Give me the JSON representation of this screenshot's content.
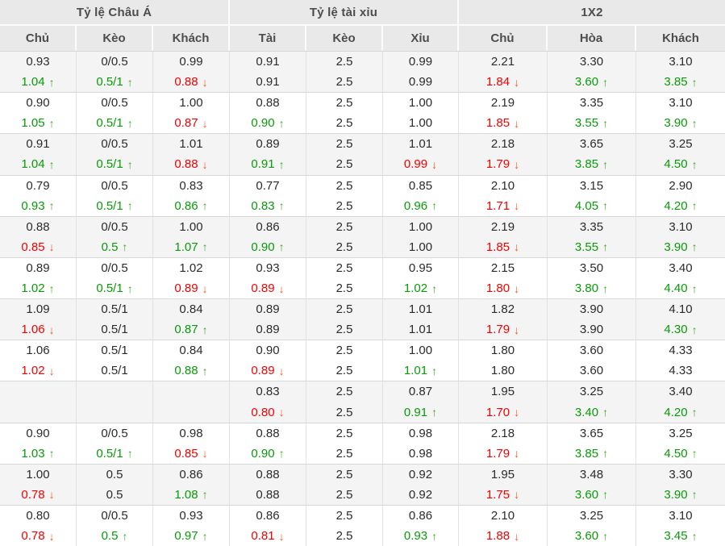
{
  "table": {
    "title": "odds-comparison",
    "colors": {
      "header_bg": "#e9e9e9",
      "header_text": "#4d4d4d",
      "row_alt_bg": "#f4f4f4",
      "value_text": "#2b2b2b",
      "up_green": "#089b08",
      "down_red": "#f40000",
      "arrow_up": "#4aa52c",
      "arrow_down": "#f4581c"
    },
    "groups": [
      {
        "label": "Tỷ lệ Châu Á",
        "columns": [
          "Chủ",
          "Kèo",
          "Khách"
        ]
      },
      {
        "label": "Tỷ lệ tài xỉu",
        "columns": [
          "Tài",
          "Kèo",
          "Xỉu"
        ]
      },
      {
        "label": "1X2",
        "columns": [
          "Chủ",
          "Hòa",
          "Khách"
        ]
      }
    ],
    "rows": [
      {
        "cells": [
          {
            "top": "0.93",
            "bottom": "1.04",
            "dir": "up"
          },
          {
            "top": "0/0.5",
            "bottom": "0.5/1",
            "dir": "up"
          },
          {
            "top": "0.99",
            "bottom": "0.88",
            "dir": "down"
          },
          {
            "top": "0.91",
            "bottom": "0.91",
            "dir": "none"
          },
          {
            "top": "2.5",
            "bottom": "2.5",
            "dir": "none"
          },
          {
            "top": "0.99",
            "bottom": "0.99",
            "dir": "none"
          },
          {
            "top": "2.21",
            "bottom": "1.84",
            "dir": "down"
          },
          {
            "top": "3.30",
            "bottom": "3.60",
            "dir": "up"
          },
          {
            "top": "3.10",
            "bottom": "3.85",
            "dir": "up"
          }
        ]
      },
      {
        "cells": [
          {
            "top": "0.90",
            "bottom": "1.05",
            "dir": "up"
          },
          {
            "top": "0/0.5",
            "bottom": "0.5/1",
            "dir": "up"
          },
          {
            "top": "1.00",
            "bottom": "0.87",
            "dir": "down"
          },
          {
            "top": "0.88",
            "bottom": "0.90",
            "dir": "up"
          },
          {
            "top": "2.5",
            "bottom": "2.5",
            "dir": "none"
          },
          {
            "top": "1.00",
            "bottom": "1.00",
            "dir": "none"
          },
          {
            "top": "2.19",
            "bottom": "1.85",
            "dir": "down"
          },
          {
            "top": "3.35",
            "bottom": "3.55",
            "dir": "up"
          },
          {
            "top": "3.10",
            "bottom": "3.90",
            "dir": "up"
          }
        ]
      },
      {
        "cells": [
          {
            "top": "0.91",
            "bottom": "1.04",
            "dir": "up"
          },
          {
            "top": "0/0.5",
            "bottom": "0.5/1",
            "dir": "up"
          },
          {
            "top": "1.01",
            "bottom": "0.88",
            "dir": "down"
          },
          {
            "top": "0.89",
            "bottom": "0.91",
            "dir": "up"
          },
          {
            "top": "2.5",
            "bottom": "2.5",
            "dir": "none"
          },
          {
            "top": "1.01",
            "bottom": "0.99",
            "dir": "down"
          },
          {
            "top": "2.18",
            "bottom": "1.79",
            "dir": "down"
          },
          {
            "top": "3.65",
            "bottom": "3.85",
            "dir": "up"
          },
          {
            "top": "3.25",
            "bottom": "4.50",
            "dir": "up"
          }
        ]
      },
      {
        "cells": [
          {
            "top": "0.79",
            "bottom": "0.93",
            "dir": "up"
          },
          {
            "top": "0/0.5",
            "bottom": "0.5/1",
            "dir": "up"
          },
          {
            "top": "0.83",
            "bottom": "0.86",
            "dir": "up"
          },
          {
            "top": "0.77",
            "bottom": "0.83",
            "dir": "up"
          },
          {
            "top": "2.5",
            "bottom": "2.5",
            "dir": "none"
          },
          {
            "top": "0.85",
            "bottom": "0.96",
            "dir": "up"
          },
          {
            "top": "2.10",
            "bottom": "1.71",
            "dir": "down"
          },
          {
            "top": "3.15",
            "bottom": "4.05",
            "dir": "up"
          },
          {
            "top": "2.90",
            "bottom": "4.20",
            "dir": "up"
          }
        ]
      },
      {
        "cells": [
          {
            "top": "0.88",
            "bottom": "0.85",
            "dir": "down"
          },
          {
            "top": "0/0.5",
            "bottom": "0.5",
            "dir": "up"
          },
          {
            "top": "1.00",
            "bottom": "1.07",
            "dir": "up"
          },
          {
            "top": "0.86",
            "bottom": "0.90",
            "dir": "up"
          },
          {
            "top": "2.5",
            "bottom": "2.5",
            "dir": "none"
          },
          {
            "top": "1.00",
            "bottom": "1.00",
            "dir": "none"
          },
          {
            "top": "2.19",
            "bottom": "1.85",
            "dir": "down"
          },
          {
            "top": "3.35",
            "bottom": "3.55",
            "dir": "up"
          },
          {
            "top": "3.10",
            "bottom": "3.90",
            "dir": "up"
          }
        ]
      },
      {
        "cells": [
          {
            "top": "0.89",
            "bottom": "1.02",
            "dir": "up"
          },
          {
            "top": "0/0.5",
            "bottom": "0.5/1",
            "dir": "up"
          },
          {
            "top": "1.02",
            "bottom": "0.89",
            "dir": "down"
          },
          {
            "top": "0.93",
            "bottom": "0.89",
            "dir": "down"
          },
          {
            "top": "2.5",
            "bottom": "2.5",
            "dir": "none"
          },
          {
            "top": "0.95",
            "bottom": "1.02",
            "dir": "up"
          },
          {
            "top": "2.15",
            "bottom": "1.80",
            "dir": "down"
          },
          {
            "top": "3.50",
            "bottom": "3.80",
            "dir": "up"
          },
          {
            "top": "3.40",
            "bottom": "4.40",
            "dir": "up"
          }
        ]
      },
      {
        "cells": [
          {
            "top": "1.09",
            "bottom": "1.06",
            "dir": "down"
          },
          {
            "top": "0.5/1",
            "bottom": "0.5/1",
            "dir": "none"
          },
          {
            "top": "0.84",
            "bottom": "0.87",
            "dir": "up"
          },
          {
            "top": "0.89",
            "bottom": "0.89",
            "dir": "none"
          },
          {
            "top": "2.5",
            "bottom": "2.5",
            "dir": "none"
          },
          {
            "top": "1.01",
            "bottom": "1.01",
            "dir": "none"
          },
          {
            "top": "1.82",
            "bottom": "1.79",
            "dir": "down"
          },
          {
            "top": "3.90",
            "bottom": "3.90",
            "dir": "none"
          },
          {
            "top": "4.10",
            "bottom": "4.30",
            "dir": "up"
          }
        ]
      },
      {
        "cells": [
          {
            "top": "1.06",
            "bottom": "1.02",
            "dir": "down"
          },
          {
            "top": "0.5/1",
            "bottom": "0.5/1",
            "dir": "none"
          },
          {
            "top": "0.84",
            "bottom": "0.88",
            "dir": "up"
          },
          {
            "top": "0.90",
            "bottom": "0.89",
            "dir": "down"
          },
          {
            "top": "2.5",
            "bottom": "2.5",
            "dir": "none"
          },
          {
            "top": "1.00",
            "bottom": "1.01",
            "dir": "up"
          },
          {
            "top": "1.80",
            "bottom": "1.80",
            "dir": "none"
          },
          {
            "top": "3.60",
            "bottom": "3.60",
            "dir": "none"
          },
          {
            "top": "4.33",
            "bottom": "4.33",
            "dir": "none"
          }
        ]
      },
      {
        "cells": [
          {
            "top": "",
            "bottom": "",
            "dir": "none"
          },
          {
            "top": "",
            "bottom": "",
            "dir": "none"
          },
          {
            "top": "",
            "bottom": "",
            "dir": "none"
          },
          {
            "top": "0.83",
            "bottom": "0.80",
            "dir": "down"
          },
          {
            "top": "2.5",
            "bottom": "2.5",
            "dir": "none"
          },
          {
            "top": "0.87",
            "bottom": "0.91",
            "dir": "up"
          },
          {
            "top": "1.95",
            "bottom": "1.70",
            "dir": "down"
          },
          {
            "top": "3.25",
            "bottom": "3.40",
            "dir": "up"
          },
          {
            "top": "3.40",
            "bottom": "4.20",
            "dir": "up"
          }
        ]
      },
      {
        "cells": [
          {
            "top": "0.90",
            "bottom": "1.03",
            "dir": "up"
          },
          {
            "top": "0/0.5",
            "bottom": "0.5/1",
            "dir": "up"
          },
          {
            "top": "0.98",
            "bottom": "0.85",
            "dir": "down"
          },
          {
            "top": "0.88",
            "bottom": "0.90",
            "dir": "up"
          },
          {
            "top": "2.5",
            "bottom": "2.5",
            "dir": "none"
          },
          {
            "top": "0.98",
            "bottom": "0.98",
            "dir": "none"
          },
          {
            "top": "2.18",
            "bottom": "1.79",
            "dir": "down"
          },
          {
            "top": "3.65",
            "bottom": "3.85",
            "dir": "up"
          },
          {
            "top": "3.25",
            "bottom": "4.50",
            "dir": "up"
          }
        ]
      },
      {
        "cells": [
          {
            "top": "1.00",
            "bottom": "0.78",
            "dir": "down"
          },
          {
            "top": "0.5",
            "bottom": "0.5",
            "dir": "none"
          },
          {
            "top": "0.86",
            "bottom": "1.08",
            "dir": "up"
          },
          {
            "top": "0.88",
            "bottom": "0.88",
            "dir": "none"
          },
          {
            "top": "2.5",
            "bottom": "2.5",
            "dir": "none"
          },
          {
            "top": "0.92",
            "bottom": "0.92",
            "dir": "none"
          },
          {
            "top": "1.95",
            "bottom": "1.75",
            "dir": "down"
          },
          {
            "top": "3.48",
            "bottom": "3.60",
            "dir": "up"
          },
          {
            "top": "3.30",
            "bottom": "3.90",
            "dir": "up"
          }
        ]
      },
      {
        "cells": [
          {
            "top": "0.80",
            "bottom": "0.78",
            "dir": "down"
          },
          {
            "top": "0/0.5",
            "bottom": "0.5",
            "dir": "up"
          },
          {
            "top": "0.93",
            "bottom": "0.97",
            "dir": "up"
          },
          {
            "top": "0.86",
            "bottom": "0.81",
            "dir": "down"
          },
          {
            "top": "2.5",
            "bottom": "2.5",
            "dir": "none"
          },
          {
            "top": "0.86",
            "bottom": "0.93",
            "dir": "up"
          },
          {
            "top": "2.10",
            "bottom": "1.88",
            "dir": "down"
          },
          {
            "top": "3.25",
            "bottom": "3.60",
            "dir": "up"
          },
          {
            "top": "3.10",
            "bottom": "3.45",
            "dir": "up"
          }
        ]
      }
    ]
  }
}
